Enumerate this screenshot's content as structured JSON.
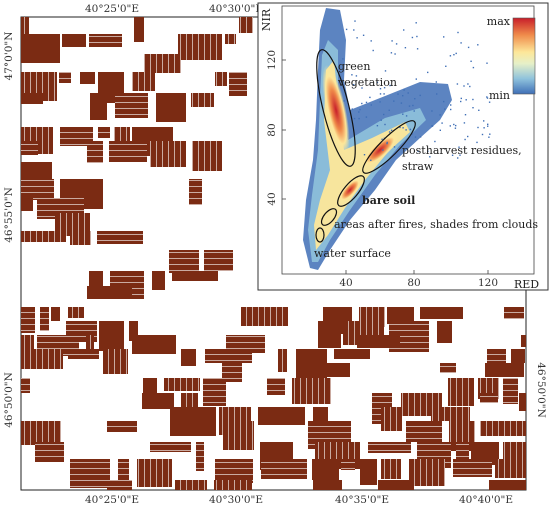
{
  "map": {
    "field_color": "#7b2b13",
    "frame_color": "#222222",
    "top_ticks": [
      "40°25'0\"E",
      "40°30'0\"E"
    ],
    "bottom_ticks": [
      "40°25'0\"E",
      "40°30'0\"E",
      "40°35'0\"E",
      "40°40'0\"E"
    ],
    "left_ticks": [
      "47°0'0\"N",
      "46°55'0\"N",
      "46°50'0\"N"
    ],
    "right_ticks": [
      "46°50'0\"N"
    ]
  },
  "inset": {
    "x_axis_label": "RED",
    "y_axis_label": "NIR",
    "x_ticks": [
      "40",
      "80",
      "120"
    ],
    "y_ticks": [
      "40",
      "80",
      "120"
    ],
    "colorbar": {
      "max_label": "max",
      "min_label": "min",
      "colors": [
        "#c81e2a",
        "#ef8a4a",
        "#fde79a",
        "#e6f0c8",
        "#8fc2dc",
        "#3f6fb6"
      ]
    },
    "labels": {
      "green_vegetation_line1": "green",
      "green_vegetation_line2": "vegetation",
      "residues_line1": "postharvest residues,",
      "residues_line2": "straw",
      "bare_soil": "bare soil",
      "fires": "areas after fires, shades from clouds",
      "water": "water surface"
    }
  }
}
